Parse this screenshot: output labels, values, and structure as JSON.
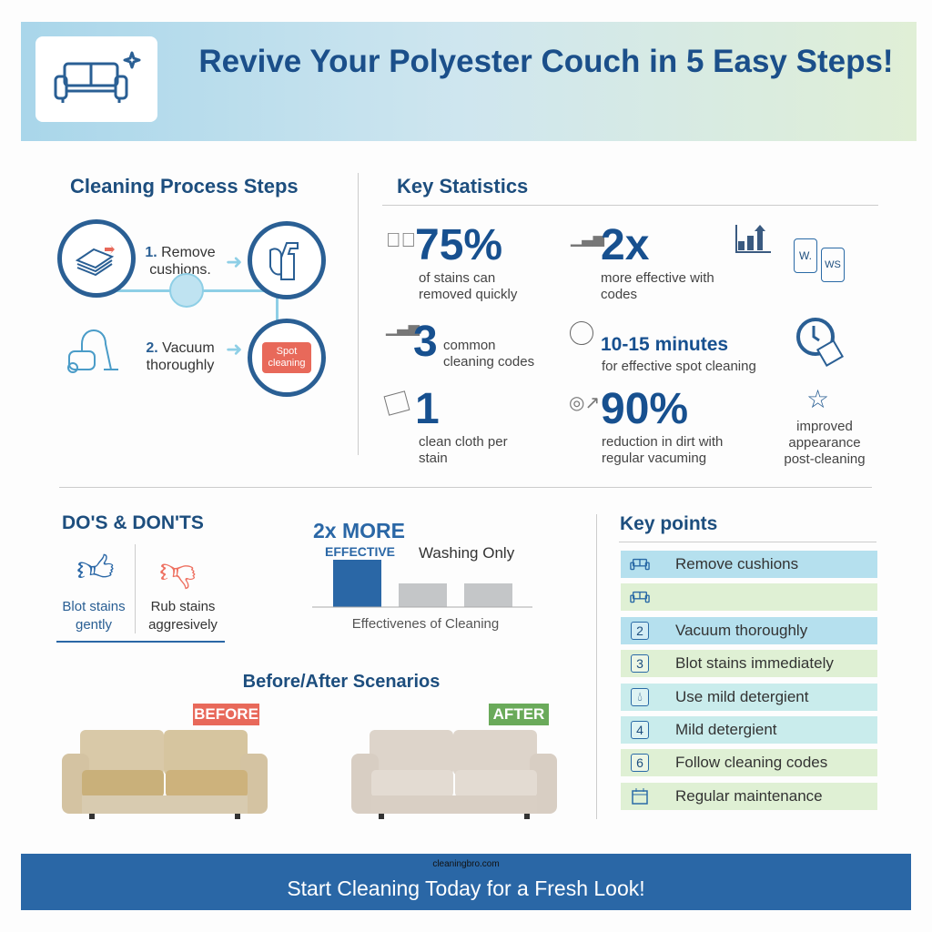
{
  "header": {
    "title": "Revive Your Polyester Couch in 5 Easy Steps!",
    "logo_icon": "couch-sparkle-icon"
  },
  "process": {
    "title": "Cleaning Process Steps",
    "steps": [
      {
        "number": "1.",
        "label": "Remove cushions."
      },
      {
        "number": "2.",
        "label": "Vacuum thoroughly"
      }
    ],
    "spot_badge": "Spot cleaning"
  },
  "stats": {
    "title": "Key Statistics",
    "items": [
      {
        "value": "75%",
        "text": "of stains can removed quickly",
        "icon": "check-circle-icon"
      },
      {
        "value": "2x",
        "text": "more effective with codes",
        "icon": "bar-chart-icon"
      },
      {
        "value": "3",
        "text": "common cleaning codes",
        "icon": "bar-chart-icon"
      },
      {
        "value": "10-15",
        "unit": "minutes",
        "text": "for effective spot cleaning",
        "icon": "clock-icon"
      },
      {
        "value": "1",
        "text": "clean cloth per stain",
        "icon": "cloth-icon"
      },
      {
        "value": "90%",
        "text": "reduction in dirt with regular vacuming",
        "icon": "target-icon"
      },
      {
        "text": "improved appearance post-cleaning",
        "icon": "star-icon"
      }
    ],
    "tags": [
      "W.",
      "WS"
    ]
  },
  "dos_donts": {
    "title": "DO'S & DON'TS",
    "do": "Blot stains gently",
    "dont": "Rub stains aggresively"
  },
  "chart_data": {
    "type": "bar",
    "title": "",
    "xlabel": "Effectivenes of Cleaning",
    "annotations": [
      "2x MORE",
      "EFFECTIVE",
      "Washing Only"
    ],
    "values": [
      2,
      1,
      1
    ],
    "colors": [
      "#2a67a6",
      "#c4c6c8",
      "#c4c6c8"
    ]
  },
  "key_points": {
    "title": "Key points",
    "items": [
      {
        "icon": "couch-icon",
        "badge": "",
        "label": "Remove cushions",
        "color": "#b5e0ee"
      },
      {
        "icon": "couch-icon",
        "badge": "",
        "label": "",
        "color": "#dff0d4"
      },
      {
        "icon": "number-icon",
        "badge": "2",
        "label": "Vacuum thoroughly",
        "color": "#b5e0ee"
      },
      {
        "icon": "number-icon",
        "badge": "3",
        "label": "Blot stains immediately",
        "color": "#dff0d4"
      },
      {
        "icon": "drop-icon",
        "badge": "",
        "label": "Use mild detergient",
        "color": "#c9ecec"
      },
      {
        "icon": "number-icon",
        "badge": "4",
        "label": "Mild detergient",
        "color": "#c9ecec"
      },
      {
        "icon": "number-icon",
        "badge": "6",
        "label": "Follow cleaning codes",
        "color": "#dff0d4"
      },
      {
        "icon": "calendar-icon",
        "badge": "",
        "label": "Regular maintenance",
        "color": "#dff0d4"
      }
    ]
  },
  "before_after": {
    "title": "Before/After Scenarios",
    "before": "BEFORE",
    "after": "AFTER",
    "before_color": "#e8695a",
    "after_color": "#6aaa5a"
  },
  "footer": {
    "watermark": "cleaningbro.com",
    "cta": "Start Cleaning Today for a Fresh Look!"
  }
}
